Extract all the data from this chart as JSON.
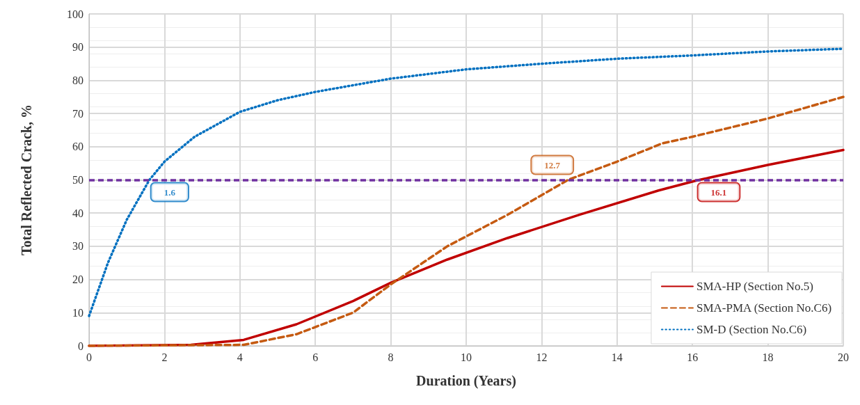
{
  "chart_data": {
    "type": "line",
    "xlabel": "Duration (Years)",
    "ylabel": "Total Reflected Crack, %",
    "xlim": [
      0,
      20
    ],
    "xticks": [
      0,
      2,
      4,
      6,
      8,
      10,
      12,
      14,
      16,
      18,
      20
    ],
    "ylim": [
      0,
      100
    ],
    "yticks": [
      0,
      10,
      20,
      30,
      40,
      50,
      60,
      70,
      80,
      90,
      100
    ],
    "grid": true,
    "legend": "bottom right",
    "marker": "none",
    "series": [
      {
        "name": "SMA-HP (Section No.5)",
        "color": "#c00000",
        "line_style": "solid",
        "x": [
          0,
          2.7,
          4.1,
          5.5,
          7,
          8,
          9.5,
          11.1,
          13,
          15.1,
          16.1,
          18,
          20
        ],
        "values": [
          0,
          0.3,
          1.8,
          6.5,
          13.5,
          19,
          26,
          32.5,
          39.5,
          46.8,
          49.8,
          54.5,
          59
        ]
      },
      {
        "name": "SMA-PMA (Section No.C6)",
        "color": "#c55a11",
        "line_style": "dashed",
        "x": [
          0,
          4.1,
          5.5,
          7,
          8,
          9.5,
          11.1,
          12.7,
          14,
          15.2,
          16,
          18,
          20
        ],
        "values": [
          0,
          0.3,
          3.5,
          10,
          18.5,
          30,
          39.5,
          50,
          55.5,
          61,
          63,
          68.5,
          75
        ]
      },
      {
        "name": "SM-D (Section No.C6)",
        "color": "#0070c0",
        "line_style": "dotted",
        "x": [
          0,
          0.5,
          1,
          1.6,
          2,
          2.8,
          4,
          5,
          6,
          7,
          8,
          10,
          12,
          14,
          16,
          18,
          20
        ],
        "values": [
          9,
          25,
          38,
          50,
          55.5,
          63,
          70.5,
          74,
          76.5,
          78.5,
          80.5,
          83.3,
          85,
          86.5,
          87.5,
          88.7,
          89.5
        ]
      }
    ],
    "ref_lines": [
      {
        "axis": "y",
        "value": 50,
        "color": "#7030a0",
        "line_style": "dashed"
      }
    ],
    "annotations": [
      {
        "text": "1.6",
        "x": 1.6,
        "y": 50
      },
      {
        "text": "12.7",
        "x": 12.7,
        "y": 50
      },
      {
        "text": "16.1",
        "x": 16.1,
        "y": 50
      }
    ]
  }
}
